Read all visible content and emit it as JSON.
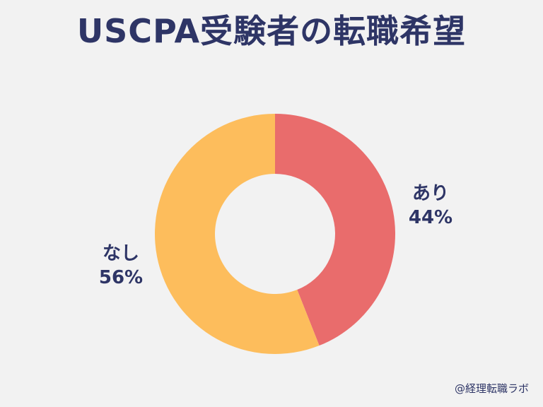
{
  "chart_data": {
    "type": "pie",
    "donut": true,
    "title": "USCPA受験者の転職希望",
    "categories": [
      "あり",
      "なし"
    ],
    "values": [
      44,
      56
    ],
    "value_labels": [
      "44%",
      "56%"
    ],
    "colors": [
      "#e96c6c",
      "#fdbd5c"
    ],
    "legend": "none",
    "start_angle": "top, clockwise"
  },
  "credit": "@経理転職ラボ"
}
